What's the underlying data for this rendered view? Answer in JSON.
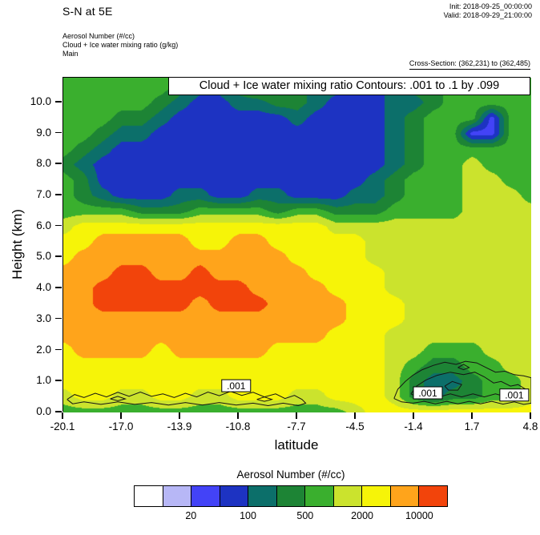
{
  "header": {
    "title": "S-N at 5E",
    "init_label": "Init: 2018-09-25_00:00:00",
    "valid_label": "Valid: 2018-09-29_21:00:00",
    "field_line_1": "Aerosol Number   (#/cc)",
    "field_line_2": "Cloud + Ice water mixing ratio   (g/kg)",
    "field_line_3": "Main",
    "cross_section": "Cross-Section: (362,231) to (362,485)"
  },
  "plot": {
    "info_box": "Cloud + Ice water mixing ratio Contours: .001 to .1 by .099",
    "xlabel": "latitude",
    "ylabel": "Height (km)"
  },
  "colorbar": {
    "title": "Aerosol Number  (#/cc)",
    "labels": [
      "20",
      "100",
      "500",
      "2000",
      "10000"
    ],
    "label_boundary_index": [
      2,
      4,
      6,
      8,
      10
    ]
  },
  "chart_data": {
    "type": "heatmap",
    "title": "Aerosol Number cross-section S-N at 5E with cloud + ice water mixing ratio contours",
    "xlabel": "latitude",
    "ylabel": "Height (km)",
    "xlim": [
      -20.1,
      4.8
    ],
    "ylim": [
      0,
      10.8
    ],
    "x_ticks": [
      "-20.1",
      "-17.0",
      "-13.9",
      "-10.8",
      "-7.7",
      "-4.5",
      "-1.4",
      "1.7",
      "4.8"
    ],
    "y_ticks": [
      "0.0",
      "1.0",
      "2.0",
      "3.0",
      "4.0",
      "5.0",
      "6.0",
      "7.0",
      "8.0",
      "9.0",
      "10.0"
    ],
    "units": "#/cc",
    "levels": [
      10,
      20,
      50,
      100,
      200,
      500,
      1000,
      2000,
      5000,
      10000
    ],
    "palette": [
      "#ffffff",
      "#b7b7f6",
      "#4343f7",
      "#1d33c2",
      "#0c6f6a",
      "#1d8435",
      "#3aaf2e",
      "#cbe32d",
      "#f6f408",
      "#ffa41b",
      "#f2440b"
    ],
    "grid": {
      "lats": [
        -20.1,
        -19.06,
        -18.03,
        -16.99,
        -15.95,
        -14.91,
        -13.88,
        -12.84,
        -11.8,
        -10.76,
        -9.73,
        -8.69,
        -7.65,
        -6.61,
        -5.58,
        -4.54,
        -3.5,
        -2.46,
        -1.43,
        -0.39,
        0.65,
        1.69,
        2.72,
        3.76,
        4.8
      ],
      "heights": [
        0,
        0.5,
        1.0,
        1.5,
        2.0,
        2.5,
        3.0,
        3.5,
        4.0,
        4.5,
        5.0,
        5.5,
        6.0,
        6.5,
        7.0,
        7.5,
        8.0,
        8.5,
        9.0,
        9.5,
        10.0,
        10.5
      ],
      "values": [
        [
          6,
          6,
          6,
          6,
          6,
          6,
          6,
          6,
          6,
          6,
          6,
          6,
          6,
          6,
          6,
          7,
          8,
          8,
          8,
          8,
          8,
          8,
          8,
          8,
          8
        ],
        [
          7,
          8,
          8,
          7,
          7,
          8,
          8,
          7,
          7,
          8,
          8,
          8,
          7,
          7,
          8,
          8,
          8,
          7,
          5,
          4,
          5,
          5,
          6,
          6,
          7
        ],
        [
          8,
          8,
          8,
          8,
          8,
          8,
          8,
          8,
          8,
          8,
          8,
          8,
          8,
          8,
          8,
          8,
          8,
          7,
          5,
          4,
          4,
          5,
          6,
          6,
          7
        ],
        [
          8,
          8,
          8,
          8,
          8,
          8,
          8,
          8,
          8,
          8,
          8,
          8,
          8,
          8,
          8,
          8,
          8,
          7,
          6,
          5,
          5,
          6,
          6,
          7,
          7
        ],
        [
          8,
          9,
          9,
          9,
          9,
          8,
          9,
          9,
          9,
          9,
          9,
          8,
          8,
          8,
          8,
          8,
          8,
          7,
          7,
          6,
          6,
          6,
          7,
          7,
          7
        ],
        [
          9,
          9,
          9,
          9,
          9,
          9,
          9,
          9,
          9,
          9,
          9,
          9,
          9,
          9,
          8,
          8,
          8,
          7,
          7,
          7,
          7,
          7,
          7,
          7,
          7
        ],
        [
          9,
          9,
          9,
          9,
          9,
          9,
          9,
          9,
          9,
          9,
          9,
          9,
          9,
          9,
          9,
          8,
          8,
          8,
          7,
          7,
          7,
          7,
          7,
          7,
          7
        ],
        [
          9,
          9,
          10,
          10,
          10,
          10,
          10,
          9,
          10,
          10,
          10,
          9,
          9,
          9,
          9,
          8,
          8,
          8,
          7,
          7,
          7,
          7,
          7,
          7,
          7
        ],
        [
          9,
          9,
          10,
          10,
          10,
          10,
          10,
          10,
          10,
          10,
          9,
          9,
          9,
          9,
          8,
          8,
          8,
          7,
          7,
          7,
          7,
          7,
          7,
          7,
          7
        ],
        [
          9,
          9,
          9,
          10,
          10,
          9,
          9,
          10,
          9,
          9,
          9,
          9,
          9,
          8,
          8,
          8,
          8,
          7,
          7,
          7,
          7,
          7,
          7,
          7,
          7
        ],
        [
          8,
          9,
          9,
          9,
          9,
          9,
          9,
          9,
          9,
          9,
          9,
          9,
          8,
          8,
          8,
          8,
          7,
          7,
          7,
          7,
          7,
          7,
          7,
          7,
          7
        ],
        [
          8,
          8,
          9,
          9,
          9,
          9,
          9,
          8,
          8,
          9,
          9,
          8,
          8,
          8,
          8,
          8,
          7,
          7,
          7,
          7,
          7,
          7,
          7,
          7,
          7
        ],
        [
          7,
          8,
          8,
          8,
          8,
          8,
          8,
          8,
          8,
          8,
          8,
          8,
          8,
          8,
          7,
          7,
          7,
          7,
          7,
          7,
          7,
          7,
          7,
          7,
          7
        ],
        [
          6,
          6,
          6,
          6,
          5,
          5,
          5,
          6,
          6,
          6,
          6,
          5,
          6,
          6,
          5,
          5,
          5,
          6,
          6,
          6,
          6,
          7,
          7,
          7,
          7
        ],
        [
          6,
          5,
          4,
          3,
          3,
          3,
          4,
          4,
          3,
          3,
          4,
          4,
          3,
          3,
          3,
          4,
          4,
          5,
          6,
          6,
          6,
          7,
          7,
          7,
          6
        ],
        [
          6,
          5,
          3,
          3,
          3,
          3,
          3,
          3,
          3,
          3,
          3,
          3,
          3,
          3,
          3,
          3,
          4,
          5,
          6,
          6,
          6,
          7,
          7,
          6,
          6
        ],
        [
          5,
          4,
          3,
          3,
          3,
          3,
          3,
          3,
          3,
          3,
          3,
          3,
          3,
          3,
          3,
          3,
          3,
          4,
          5,
          6,
          6,
          7,
          6,
          6,
          6
        ],
        [
          6,
          5,
          4,
          3,
          3,
          3,
          3,
          3,
          3,
          3,
          3,
          3,
          3,
          3,
          3,
          3,
          3,
          4,
          5,
          6,
          6,
          6,
          6,
          6,
          6
        ],
        [
          6,
          6,
          5,
          4,
          4,
          3,
          3,
          3,
          3,
          3,
          3,
          3,
          3,
          3,
          3,
          3,
          3,
          4,
          5,
          6,
          6,
          2,
          2,
          6,
          6
        ],
        [
          6,
          6,
          6,
          5,
          5,
          4,
          3,
          3,
          3,
          3,
          3,
          3,
          4,
          3,
          3,
          3,
          3,
          4,
          5,
          6,
          6,
          6,
          2,
          6,
          6
        ],
        [
          6,
          6,
          6,
          6,
          6,
          5,
          4,
          3,
          3,
          4,
          4,
          5,
          5,
          4,
          3,
          3,
          3,
          4,
          4,
          5,
          6,
          6,
          6,
          6,
          6
        ],
        [
          6,
          6,
          6,
          6,
          6,
          6,
          5,
          4,
          4,
          5,
          6,
          6,
          5,
          4,
          4,
          3,
          3,
          4,
          5,
          5,
          6,
          6,
          6,
          6,
          6
        ]
      ]
    },
    "cloud_contours": {
      "level": 0.001,
      "label": ".001",
      "labels_at": [
        [
          -10.9,
          0.85
        ],
        [
          -0.7,
          0.62
        ],
        [
          3.9,
          0.55
        ]
      ],
      "paths": [
        [
          [
            -19.9,
            0.42
          ],
          [
            -19.5,
            0.58
          ],
          [
            -19.0,
            0.48
          ],
          [
            -18.4,
            0.62
          ],
          [
            -17.8,
            0.5
          ],
          [
            -17.2,
            0.65
          ],
          [
            -16.6,
            0.52
          ],
          [
            -16.0,
            0.66
          ],
          [
            -15.4,
            0.52
          ],
          [
            -14.8,
            0.6
          ],
          [
            -14.2,
            0.48
          ],
          [
            -13.6,
            0.62
          ],
          [
            -13.0,
            0.5
          ],
          [
            -12.4,
            0.66
          ],
          [
            -11.8,
            0.54
          ],
          [
            -11.2,
            0.68
          ],
          [
            -10.6,
            0.55
          ],
          [
            -10.0,
            0.65
          ],
          [
            -9.4,
            0.5
          ],
          [
            -8.8,
            0.6
          ],
          [
            -8.3,
            0.45
          ],
          [
            -7.8,
            0.55
          ],
          [
            -7.4,
            0.42
          ],
          [
            -7.2,
            0.3
          ],
          [
            -7.6,
            0.22
          ],
          [
            -8.4,
            0.3
          ],
          [
            -9.2,
            0.22
          ],
          [
            -10.0,
            0.3
          ],
          [
            -10.9,
            0.24
          ],
          [
            -11.8,
            0.32
          ],
          [
            -12.7,
            0.24
          ],
          [
            -13.6,
            0.32
          ],
          [
            -14.5,
            0.24
          ],
          [
            -15.4,
            0.32
          ],
          [
            -16.3,
            0.26
          ],
          [
            -17.2,
            0.34
          ],
          [
            -18.1,
            0.26
          ],
          [
            -19.0,
            0.34
          ],
          [
            -19.6,
            0.28
          ],
          [
            -19.9,
            0.42
          ]
        ],
        [
          [
            -17.6,
            0.44
          ],
          [
            -17.2,
            0.52
          ],
          [
            -16.8,
            0.44
          ],
          [
            -17.2,
            0.38
          ],
          [
            -17.6,
            0.44
          ]
        ],
        [
          [
            -9.8,
            0.42
          ],
          [
            -9.4,
            0.5
          ],
          [
            -9.0,
            0.42
          ],
          [
            -9.4,
            0.36
          ],
          [
            -9.8,
            0.42
          ]
        ],
        [
          [
            -2.5,
            0.45
          ],
          [
            -2.3,
            0.75
          ],
          [
            -1.9,
            1.0
          ],
          [
            -1.5,
            1.2
          ],
          [
            -1.0,
            1.38
          ],
          [
            -0.4,
            1.52
          ],
          [
            0.2,
            1.62
          ],
          [
            0.8,
            1.55
          ],
          [
            1.3,
            1.65
          ],
          [
            1.9,
            1.6
          ],
          [
            2.4,
            1.45
          ],
          [
            2.9,
            1.3
          ],
          [
            3.4,
            1.33
          ],
          [
            3.9,
            1.22
          ],
          [
            4.4,
            1.18
          ],
          [
            4.8,
            1.12
          ],
          [
            4.8,
            0.3
          ],
          [
            4.4,
            0.26
          ],
          [
            3.9,
            0.34
          ],
          [
            3.3,
            0.27
          ],
          [
            2.7,
            0.36
          ],
          [
            2.1,
            0.28
          ],
          [
            1.5,
            0.36
          ],
          [
            0.9,
            0.28
          ],
          [
            0.3,
            0.36
          ],
          [
            -0.3,
            0.28
          ],
          [
            -0.9,
            0.36
          ],
          [
            -1.5,
            0.3
          ],
          [
            -2.1,
            0.34
          ],
          [
            -2.5,
            0.45
          ]
        ],
        [
          [
            -1.6,
            0.6
          ],
          [
            -1.3,
            0.85
          ],
          [
            -0.8,
            1.05
          ],
          [
            -0.2,
            1.2
          ],
          [
            0.5,
            1.3
          ],
          [
            1.2,
            1.22
          ],
          [
            1.8,
            1.3
          ],
          [
            2.3,
            1.15
          ],
          [
            2.8,
            0.95
          ],
          [
            3.2,
            1.0
          ],
          [
            3.7,
            0.85
          ],
          [
            4.1,
            0.9
          ],
          [
            4.5,
            0.75
          ],
          [
            4.4,
            0.55
          ],
          [
            4.0,
            0.62
          ],
          [
            3.5,
            0.5
          ],
          [
            2.9,
            0.6
          ],
          [
            2.3,
            0.5
          ],
          [
            1.7,
            0.6
          ],
          [
            1.1,
            0.5
          ],
          [
            0.5,
            0.6
          ],
          [
            -0.1,
            0.5
          ],
          [
            -0.7,
            0.58
          ],
          [
            -1.2,
            0.48
          ],
          [
            -1.6,
            0.6
          ]
        ],
        [
          [
            0.2,
            0.85
          ],
          [
            0.6,
            1.0
          ],
          [
            1.1,
            0.9
          ],
          [
            0.9,
            0.72
          ],
          [
            0.4,
            0.72
          ],
          [
            0.2,
            0.85
          ]
        ],
        [
          [
            0.9,
            1.45
          ],
          [
            1.2,
            1.55
          ],
          [
            1.5,
            1.45
          ],
          [
            1.2,
            1.38
          ],
          [
            0.9,
            1.45
          ]
        ]
      ]
    }
  }
}
